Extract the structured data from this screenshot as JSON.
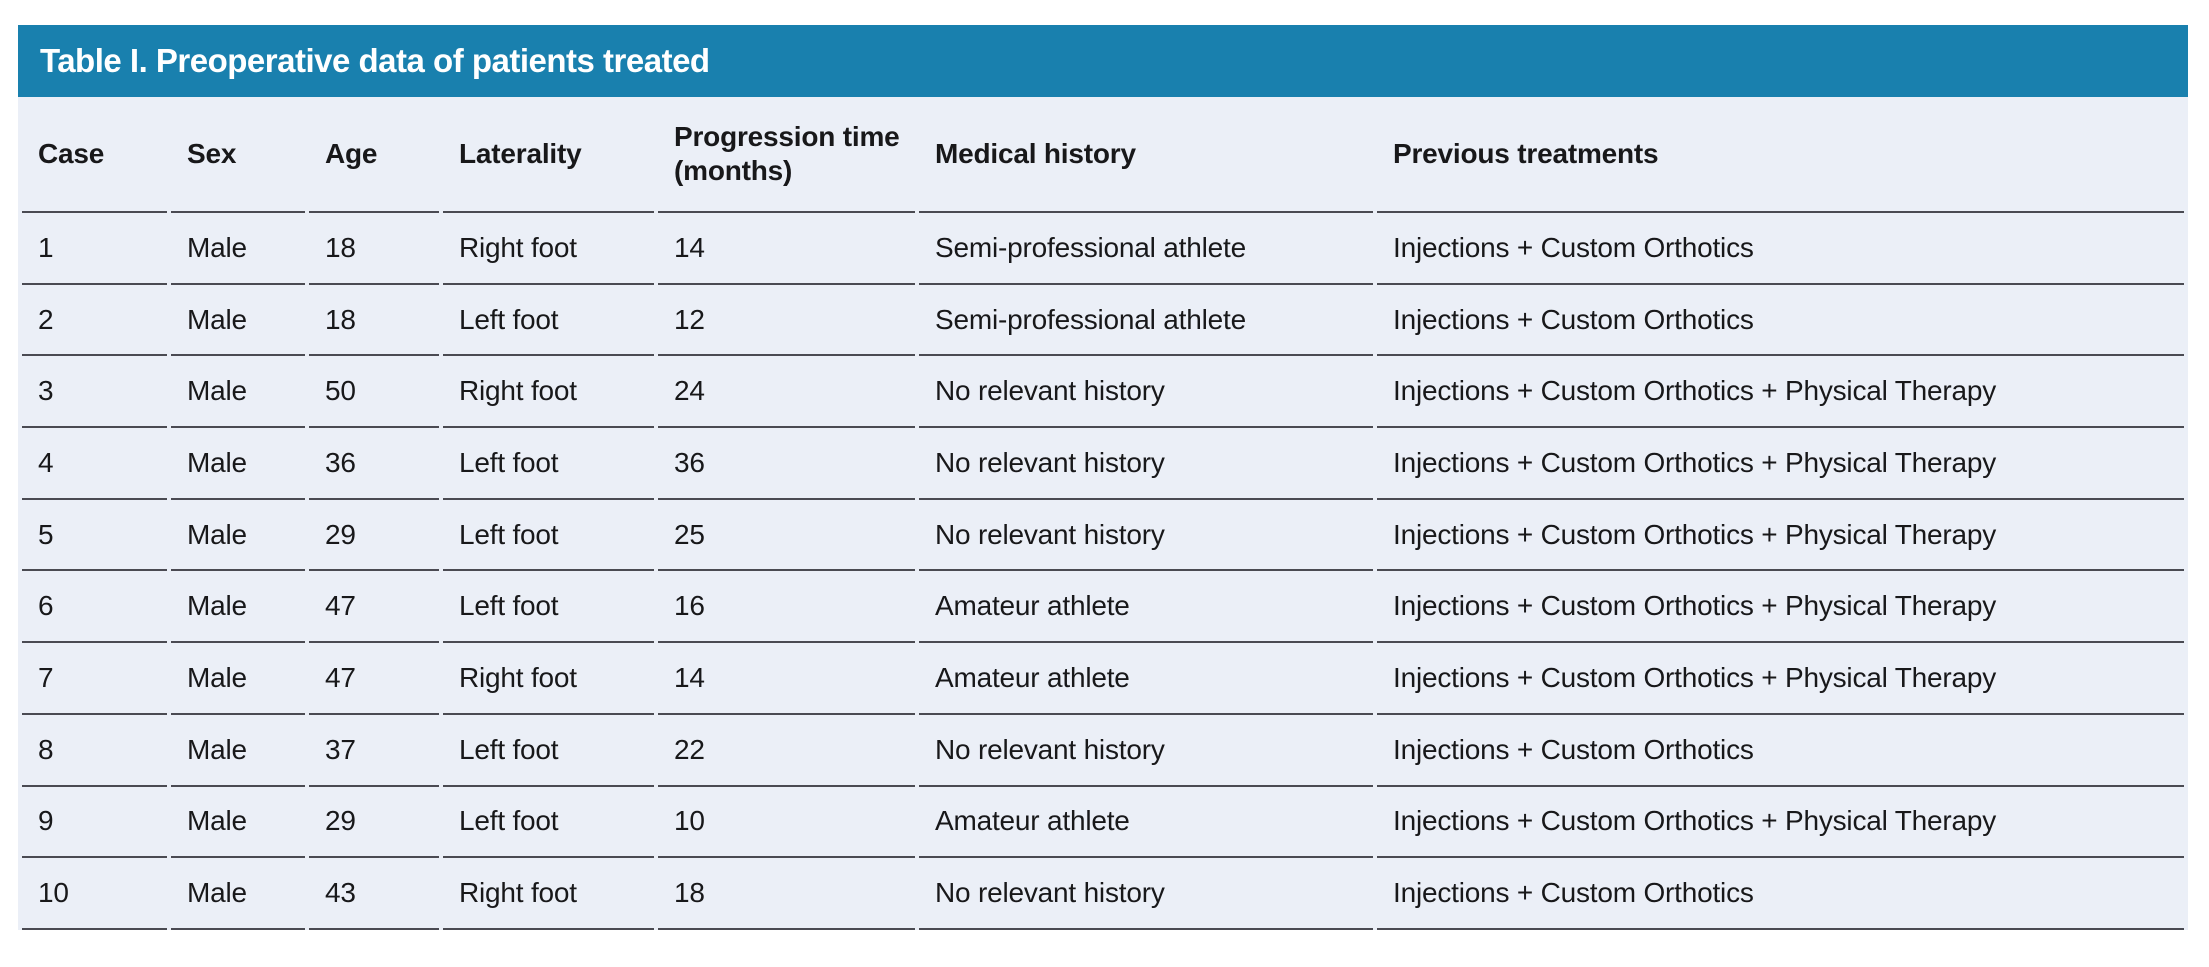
{
  "colors": {
    "header_bg": "#1980ae",
    "body_bg": "#ebeff7",
    "divider": "#4a4a52",
    "text": "#18181a",
    "title_text": "#ffffff"
  },
  "table": {
    "title": "Table I. Preoperative data of patients treated",
    "columns": [
      "Case",
      "Sex",
      "Age",
      "Laterality",
      "Progression time (months)",
      "Medical history",
      "Previous treatments"
    ],
    "rows": [
      [
        "1",
        "Male",
        "18",
        "Right foot",
        "14",
        "Semi-professional athlete",
        "Injections + Custom Orthotics"
      ],
      [
        "2",
        "Male",
        "18",
        "Left foot",
        "12",
        "Semi-professional athlete",
        "Injections + Custom Orthotics"
      ],
      [
        "3",
        "Male",
        "50",
        "Right foot",
        "24",
        "No relevant history",
        "Injections + Custom Orthotics + Physical Therapy"
      ],
      [
        "4",
        "Male",
        "36",
        "Left foot",
        "36",
        "No relevant history",
        "Injections + Custom Orthotics + Physical Therapy"
      ],
      [
        "5",
        "Male",
        "29",
        "Left foot",
        "25",
        "No relevant history",
        "Injections + Custom Orthotics + Physical Therapy"
      ],
      [
        "6",
        "Male",
        "47",
        "Left foot",
        "16",
        "Amateur athlete",
        "Injections + Custom Orthotics + Physical Therapy"
      ],
      [
        "7",
        "Male",
        "47",
        "Right foot",
        "14",
        "Amateur athlete",
        "Injections + Custom Orthotics + Physical Therapy"
      ],
      [
        "8",
        "Male",
        "37",
        "Left foot",
        "22",
        "No relevant history",
        "Injections + Custom Orthotics"
      ],
      [
        "9",
        "Male",
        "29",
        "Left foot",
        "10",
        "Amateur athlete",
        "Injections + Custom Orthotics + Physical Therapy"
      ],
      [
        "10",
        "Male",
        "43",
        "Right foot",
        "18",
        "No relevant history",
        "Injections + Custom Orthotics"
      ]
    ]
  },
  "chart_data": {
    "type": "table",
    "title": "Table I. Preoperative data of patients treated",
    "columns": [
      "Case",
      "Sex",
      "Age",
      "Laterality",
      "Progression time (months)",
      "Medical history",
      "Previous treatments"
    ],
    "rows": [
      [
        "1",
        "Male",
        "18",
        "Right foot",
        "14",
        "Semi-professional athlete",
        "Injections + Custom Orthotics"
      ],
      [
        "2",
        "Male",
        "18",
        "Left foot",
        "12",
        "Semi-professional athlete",
        "Injections + Custom Orthotics"
      ],
      [
        "3",
        "Male",
        "50",
        "Right foot",
        "24",
        "No relevant history",
        "Injections + Custom Orthotics + Physical Therapy"
      ],
      [
        "4",
        "Male",
        "36",
        "Left foot",
        "36",
        "No relevant history",
        "Injections + Custom Orthotics + Physical Therapy"
      ],
      [
        "5",
        "Male",
        "29",
        "Left foot",
        "25",
        "No relevant history",
        "Injections + Custom Orthotics + Physical Therapy"
      ],
      [
        "6",
        "Male",
        "47",
        "Left foot",
        "16",
        "Amateur athlete",
        "Injections + Custom Orthotics + Physical Therapy"
      ],
      [
        "7",
        "Male",
        "47",
        "Right foot",
        "14",
        "Amateur athlete",
        "Injections + Custom Orthotics + Physical Therapy"
      ],
      [
        "8",
        "Male",
        "37",
        "Left foot",
        "22",
        "No relevant history",
        "Injections + Custom Orthotics"
      ],
      [
        "9",
        "Male",
        "29",
        "Left foot",
        "10",
        "Amateur athlete",
        "Injections + Custom Orthotics + Physical Therapy"
      ],
      [
        "10",
        "Male",
        "43",
        "Right foot",
        "18",
        "No relevant history",
        "Injections + Custom Orthotics"
      ]
    ]
  }
}
